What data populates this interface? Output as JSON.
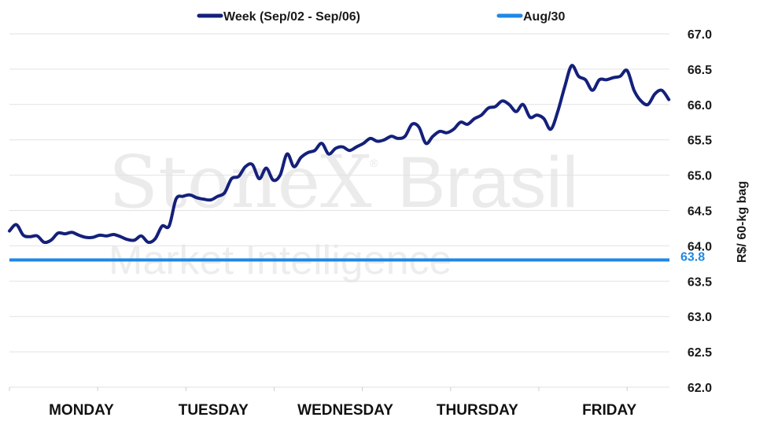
{
  "watermark": {
    "brand_bold": "StoneX",
    "brand_light": "Brasil",
    "tagline": "Market Intelligence",
    "registered": "®"
  },
  "chart_data": {
    "type": "line",
    "title": "",
    "xlabel": "",
    "ylabel": "R$/ 60-kg bag",
    "ylim": [
      62.0,
      67.0
    ],
    "y_ticks": [
      "62.0",
      "62.5",
      "63.0",
      "63.5",
      "64.0",
      "64.5",
      "65.0",
      "65.5",
      "66.0",
      "66.5",
      "67.0"
    ],
    "categories": [
      "MONDAY",
      "TUESDAY",
      "WEDNESDAY",
      "THURSDAY",
      "FRIDAY"
    ],
    "grid": true,
    "legend_position": "top",
    "reference_line": {
      "name": "Aug/30",
      "value": 63.8,
      "label": "63.8",
      "color": "#1e88e5"
    },
    "series": [
      {
        "name": "Week (Sep/02 - Sep/06)",
        "color": "#14207a",
        "x": [
          0.0,
          0.05,
          0.1,
          0.15,
          0.2,
          0.25,
          0.3,
          0.35,
          0.4,
          0.45,
          0.5,
          0.55,
          0.6,
          0.65,
          0.7,
          0.75,
          0.8,
          0.85,
          0.9,
          0.95,
          1.0,
          1.05,
          1.1,
          1.15,
          1.2,
          1.25,
          1.3,
          1.35,
          1.4,
          1.45,
          1.5,
          1.55,
          1.6,
          1.65,
          1.7,
          1.75,
          1.8,
          1.85,
          1.9,
          1.95,
          2.0,
          2.05,
          2.1,
          2.15,
          2.2,
          2.25,
          2.3,
          2.35,
          2.4,
          2.45,
          2.5,
          2.55,
          2.6,
          2.65,
          2.7,
          2.75,
          2.8,
          2.85,
          2.9,
          2.95,
          3.0,
          3.05,
          3.1,
          3.15,
          3.2,
          3.25,
          3.3,
          3.35,
          3.4,
          3.45,
          3.5,
          3.55,
          3.6,
          3.65,
          3.7,
          3.75,
          3.8,
          3.85,
          3.9,
          3.95,
          4.0,
          4.05,
          4.1,
          4.15,
          4.2,
          4.25,
          4.3,
          4.35,
          4.4,
          4.45,
          4.5,
          4.55,
          4.6,
          4.65,
          4.7,
          4.75
        ],
        "values": [
          64.21,
          64.3,
          64.15,
          64.13,
          64.14,
          64.05,
          64.08,
          64.18,
          64.17,
          64.19,
          64.15,
          64.12,
          64.12,
          64.15,
          64.14,
          64.16,
          64.13,
          64.09,
          64.08,
          64.14,
          64.05,
          64.1,
          64.28,
          64.28,
          64.66,
          64.7,
          64.72,
          64.68,
          64.66,
          64.65,
          64.7,
          64.75,
          64.95,
          64.98,
          65.12,
          65.15,
          64.95,
          65.1,
          64.93,
          65.0,
          65.3,
          65.12,
          65.25,
          65.32,
          65.35,
          65.45,
          65.3,
          65.38,
          65.4,
          65.35,
          65.4,
          65.45,
          65.52,
          65.48,
          65.5,
          65.55,
          65.52,
          65.55,
          65.72,
          65.68,
          65.45,
          65.55,
          65.62,
          65.6,
          65.65,
          65.75,
          65.72,
          65.8,
          65.85,
          65.95,
          65.97,
          66.05,
          66.0,
          65.9,
          66.0,
          65.82,
          65.85,
          65.8,
          65.65,
          65.9,
          66.25,
          66.55,
          66.4,
          66.35,
          66.2,
          66.35,
          66.35,
          66.38,
          66.4,
          66.48,
          66.2,
          66.05,
          66.0,
          66.15,
          66.2,
          66.07
        ]
      }
    ]
  }
}
